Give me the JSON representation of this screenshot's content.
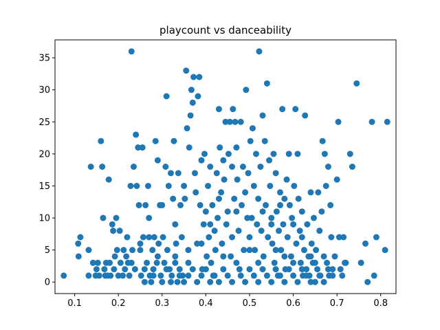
{
  "chart_data": {
    "type": "scatter",
    "title": "playcount vs danceability",
    "xlabel": "",
    "ylabel": "",
    "xlim": [
      0.055,
      0.835
    ],
    "ylim": [
      -1.8,
      37.8
    ],
    "x_ticks": [
      0.1,
      0.2,
      0.3,
      0.4,
      0.5,
      0.6,
      0.7,
      0.8
    ],
    "x_tick_labels": [
      "0.1",
      "0.2",
      "0.3",
      "0.4",
      "0.5",
      "0.6",
      "0.7",
      "0.8"
    ],
    "y_ticks": [
      0,
      5,
      10,
      15,
      20,
      25,
      30,
      35
    ],
    "y_tick_labels": [
      "0",
      "5",
      "10",
      "15",
      "20",
      "25",
      "30",
      "35"
    ],
    "grid": false,
    "marker_color": "#1f77b4",
    "series": [
      {
        "name": "",
        "points": [
          [
            0.075,
            1
          ],
          [
            0.108,
            6
          ],
          [
            0.109,
            4
          ],
          [
            0.113,
            7
          ],
          [
            0.132,
            1
          ],
          [
            0.132,
            5
          ],
          [
            0.137,
            18
          ],
          [
            0.142,
            3
          ],
          [
            0.148,
            1
          ],
          [
            0.15,
            2
          ],
          [
            0.153,
            3
          ],
          [
            0.156,
            1
          ],
          [
            0.16,
            22
          ],
          [
            0.163,
            18
          ],
          [
            0.165,
            10
          ],
          [
            0.168,
            2
          ],
          [
            0.17,
            1
          ],
          [
            0.172,
            3
          ],
          [
            0.175,
            1
          ],
          [
            0.178,
            16
          ],
          [
            0.18,
            3
          ],
          [
            0.182,
            1
          ],
          [
            0.186,
            9
          ],
          [
            0.188,
            8
          ],
          [
            0.19,
            2
          ],
          [
            0.192,
            4
          ],
          [
            0.195,
            10
          ],
          [
            0.197,
            5
          ],
          [
            0.2,
            1
          ],
          [
            0.203,
            8
          ],
          [
            0.205,
            3
          ],
          [
            0.21,
            1
          ],
          [
            0.212,
            5
          ],
          [
            0.215,
            2
          ],
          [
            0.218,
            4
          ],
          [
            0.22,
            7
          ],
          [
            0.222,
            3
          ],
          [
            0.225,
            1
          ],
          [
            0.228,
            15
          ],
          [
            0.23,
            36
          ],
          [
            0.232,
            5
          ],
          [
            0.235,
            18
          ],
          [
            0.238,
            2
          ],
          [
            0.24,
            23
          ],
          [
            0.242,
            15
          ],
          [
            0.245,
            21
          ],
          [
            0.247,
            12
          ],
          [
            0.25,
            5
          ],
          [
            0.252,
            1
          ],
          [
            0.255,
            21
          ],
          [
            0.257,
            7
          ],
          [
            0.26,
            0
          ],
          [
            0.262,
            12
          ],
          [
            0.265,
            3
          ],
          [
            0.268,
            15
          ],
          [
            0.27,
            7
          ],
          [
            0.272,
            1
          ],
          [
            0.275,
            0
          ],
          [
            0.278,
            5
          ],
          [
            0.28,
            2
          ],
          [
            0.282,
            7
          ],
          [
            0.285,
            22
          ],
          [
            0.288,
            3
          ],
          [
            0.29,
            19
          ],
          [
            0.292,
            6
          ],
          [
            0.295,
            12
          ],
          [
            0.297,
            1
          ],
          [
            0.3,
            12
          ],
          [
            0.302,
            7
          ],
          [
            0.305,
            3
          ],
          [
            0.308,
            18
          ],
          [
            0.31,
            29
          ],
          [
            0.312,
            5
          ],
          [
            0.315,
            15
          ],
          [
            0.317,
            2
          ],
          [
            0.32,
            17
          ],
          [
            0.322,
            1
          ],
          [
            0.325,
            13
          ],
          [
            0.327,
            22
          ],
          [
            0.33,
            4
          ],
          [
            0.332,
            6
          ],
          [
            0.335,
            0
          ],
          [
            0.337,
            17
          ],
          [
            0.34,
            2
          ],
          [
            0.342,
            12
          ],
          [
            0.345,
            7
          ],
          [
            0.347,
            1
          ],
          [
            0.35,
            15
          ],
          [
            0.352,
            13
          ],
          [
            0.355,
            33
          ],
          [
            0.357,
            24
          ],
          [
            0.36,
            3
          ],
          [
            0.362,
            21
          ],
          [
            0.365,
            26
          ],
          [
            0.367,
            30
          ],
          [
            0.37,
            28
          ],
          [
            0.372,
            32
          ],
          [
            0.375,
            17
          ],
          [
            0.377,
            14
          ],
          [
            0.38,
            6
          ],
          [
            0.382,
            29
          ],
          [
            0.385,
            32
          ],
          [
            0.387,
            12
          ],
          [
            0.39,
            19
          ],
          [
            0.392,
            2
          ],
          [
            0.395,
            9
          ],
          [
            0.397,
            20
          ],
          [
            0.4,
            11
          ],
          [
            0.402,
            4
          ],
          [
            0.405,
            15
          ],
          [
            0.407,
            7
          ],
          [
            0.41,
            18
          ],
          [
            0.412,
            3
          ],
          [
            0.415,
            12
          ],
          [
            0.417,
            1
          ],
          [
            0.42,
            8
          ],
          [
            0.422,
            5
          ],
          [
            0.425,
            17
          ],
          [
            0.427,
            10
          ],
          [
            0.43,
            27
          ],
          [
            0.432,
            21
          ],
          [
            0.435,
            14
          ],
          [
            0.437,
            6
          ],
          [
            0.44,
            19
          ],
          [
            0.442,
            16
          ],
          [
            0.445,
            25
          ],
          [
            0.447,
            9
          ],
          [
            0.45,
            11
          ],
          [
            0.452,
            20
          ],
          [
            0.455,
            25
          ],
          [
            0.457,
            4
          ],
          [
            0.46,
            18
          ],
          [
            0.462,
            27
          ],
          [
            0.465,
            13
          ],
          [
            0.467,
            25
          ],
          [
            0.47,
            21
          ],
          [
            0.472,
            16
          ],
          [
            0.475,
            8
          ],
          [
            0.477,
            2
          ],
          [
            0.48,
            25
          ],
          [
            0.482,
            12
          ],
          [
            0.485,
            18
          ],
          [
            0.487,
            5
          ],
          [
            0.49,
            14
          ],
          [
            0.492,
            30
          ],
          [
            0.495,
            10
          ],
          [
            0.497,
            17
          ],
          [
            0.5,
            7
          ],
          [
            0.502,
            22
          ],
          [
            0.505,
            10
          ],
          [
            0.507,
            24
          ],
          [
            0.51,
            15
          ],
          [
            0.512,
            5
          ],
          [
            0.515,
            20
          ],
          [
            0.517,
            9
          ],
          [
            0.52,
            13
          ],
          [
            0.522,
            36
          ],
          [
            0.525,
            18
          ],
          [
            0.527,
            8
          ],
          [
            0.53,
            26
          ],
          [
            0.532,
            4
          ],
          [
            0.535,
            22
          ],
          [
            0.537,
            12
          ],
          [
            0.54,
            31
          ],
          [
            0.542,
            7
          ],
          [
            0.545,
            19
          ],
          [
            0.547,
            15
          ],
          [
            0.55,
            10
          ],
          [
            0.552,
            6
          ],
          [
            0.555,
            20
          ],
          [
            0.557,
            3
          ],
          [
            0.56,
            17
          ],
          [
            0.562,
            11
          ],
          [
            0.565,
            1
          ],
          [
            0.567,
            8
          ],
          [
            0.57,
            14
          ],
          [
            0.572,
            5
          ],
          [
            0.575,
            27
          ],
          [
            0.577,
            9
          ],
          [
            0.58,
            13
          ],
          [
            0.582,
            2
          ],
          [
            0.585,
            16
          ],
          [
            0.587,
            7
          ],
          [
            0.59,
            20
          ],
          [
            0.592,
            12
          ],
          [
            0.595,
            4
          ],
          [
            0.597,
            10
          ],
          [
            0.6,
            1
          ],
          [
            0.602,
            15
          ],
          [
            0.605,
            27
          ],
          [
            0.607,
            6
          ],
          [
            0.61,
            20
          ],
          [
            0.612,
            13
          ],
          [
            0.615,
            8
          ],
          [
            0.617,
            3
          ],
          [
            0.62,
            11
          ],
          [
            0.622,
            1
          ],
          [
            0.625,
            5
          ],
          [
            0.627,
            26
          ],
          [
            0.63,
            2
          ],
          [
            0.632,
            9
          ],
          [
            0.635,
            4
          ],
          [
            0.637,
            1
          ],
          [
            0.64,
            14
          ],
          [
            0.642,
            6
          ],
          [
            0.645,
            3
          ],
          [
            0.647,
            10
          ],
          [
            0.65,
            0
          ],
          [
            0.652,
            5
          ],
          [
            0.655,
            2
          ],
          [
            0.657,
            14
          ],
          [
            0.66,
            8
          ],
          [
            0.662,
            1
          ],
          [
            0.665,
            11
          ],
          [
            0.667,
            22
          ],
          [
            0.67,
            4
          ],
          [
            0.672,
            20
          ],
          [
            0.675,
            15
          ],
          [
            0.677,
            3
          ],
          [
            0.68,
            18
          ],
          [
            0.682,
            1
          ],
          [
            0.685,
            12
          ],
          [
            0.687,
            7
          ],
          [
            0.69,
            2
          ],
          [
            0.695,
            4
          ],
          [
            0.7,
            16
          ],
          [
            0.703,
            25
          ],
          [
            0.705,
            7
          ],
          [
            0.708,
            2
          ],
          [
            0.712,
            1
          ],
          [
            0.715,
            7
          ],
          [
            0.718,
            3
          ],
          [
            0.72,
            3
          ],
          [
            0.73,
            20
          ],
          [
            0.735,
            18
          ],
          [
            0.745,
            31
          ],
          [
            0.755,
            3
          ],
          [
            0.765,
            6
          ],
          [
            0.77,
            0
          ],
          [
            0.78,
            25
          ],
          [
            0.79,
            7
          ],
          [
            0.785,
            1
          ],
          [
            0.81,
            5
          ],
          [
            0.815,
            25
          ],
          [
            0.26,
            2
          ],
          [
            0.28,
            1
          ],
          [
            0.3,
            0
          ],
          [
            0.31,
            2
          ],
          [
            0.32,
            0
          ],
          [
            0.33,
            3
          ],
          [
            0.34,
            1
          ],
          [
            0.35,
            0
          ],
          [
            0.36,
            1
          ],
          [
            0.37,
            2
          ],
          [
            0.38,
            0
          ],
          [
            0.39,
            1
          ],
          [
            0.4,
            2
          ],
          [
            0.41,
            0
          ],
          [
            0.42,
            1
          ],
          [
            0.43,
            0
          ],
          [
            0.44,
            2
          ],
          [
            0.45,
            1
          ],
          [
            0.46,
            0
          ],
          [
            0.47,
            3
          ],
          [
            0.48,
            1
          ],
          [
            0.49,
            0
          ],
          [
            0.5,
            2
          ],
          [
            0.51,
            1
          ],
          [
            0.52,
            0
          ],
          [
            0.53,
            2
          ],
          [
            0.54,
            1
          ],
          [
            0.55,
            0
          ],
          [
            0.56,
            2
          ],
          [
            0.57,
            1
          ],
          [
            0.58,
            0
          ],
          [
            0.59,
            2
          ],
          [
            0.6,
            3
          ],
          [
            0.61,
            0
          ],
          [
            0.62,
            2
          ],
          [
            0.63,
            1
          ],
          [
            0.64,
            0
          ],
          [
            0.65,
            3
          ],
          [
            0.66,
            1
          ],
          [
            0.67,
            0
          ],
          [
            0.68,
            2
          ],
          [
            0.69,
            1
          ],
          [
            0.29,
            4
          ],
          [
            0.36,
            5
          ],
          [
            0.44,
            4
          ],
          [
            0.52,
            3
          ],
          [
            0.58,
            4
          ],
          [
            0.64,
            4
          ],
          [
            0.33,
            9
          ],
          [
            0.39,
            6
          ],
          [
            0.46,
            7
          ],
          [
            0.5,
            5
          ],
          [
            0.56,
            5
          ],
          [
            0.62,
            7
          ],
          [
            0.27,
            10
          ],
          [
            0.41,
            9
          ],
          [
            0.55,
            9
          ],
          [
            0.6,
            9
          ],
          [
            0.23,
            3
          ],
          [
            0.25,
            6
          ],
          [
            0.47,
            11
          ],
          [
            0.53,
            11
          ],
          [
            0.43,
            13
          ],
          [
            0.57,
            12
          ]
        ]
      }
    ]
  }
}
